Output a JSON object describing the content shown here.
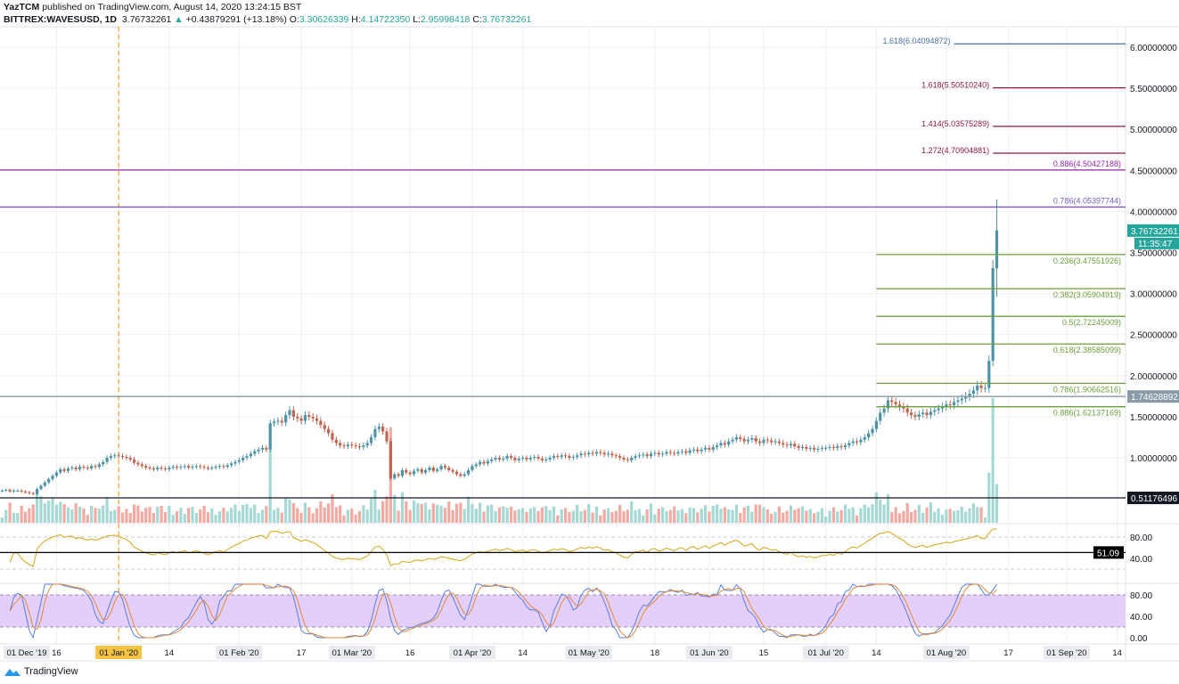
{
  "header": {
    "publisher": "YazTCM",
    "published_text": "published on TradingView.com, August 14, 2020 13:24:15 BST",
    "symbol": "BITTREX:WAVESUSD, 1D",
    "last": "3.76732261",
    "change": "+0.43879291 (+13.18%)",
    "o_label": "O:",
    "o": "3.30626339",
    "h_label": "H:",
    "h": "4.14722350",
    "l_label": "L:",
    "l": "2.95998418",
    "c_label": "C:",
    "c": "3.76732261"
  },
  "footer": {
    "brand": "TradingView"
  },
  "colors": {
    "up": "#4e94a6",
    "down": "#c0654f",
    "vol_up": "#a6d8d4",
    "vol_down": "#f2aaa2",
    "rsi": "#d4a514",
    "stoch_k": "#5b7fe0",
    "stoch_d": "#e08a3c",
    "stoch_band": "#e4cffa",
    "price_badge": "#26a69a"
  },
  "chart_data": {
    "type": "candlestick",
    "symbol": "WAVESUSD",
    "interval": "1D",
    "start_date": "2019-12-02",
    "closes": [
      0.6,
      0.61,
      0.59,
      0.6,
      0.6,
      0.59,
      0.58,
      0.57,
      0.56,
      0.62,
      0.66,
      0.7,
      0.74,
      0.78,
      0.82,
      0.86,
      0.84,
      0.87,
      0.88,
      0.86,
      0.89,
      0.88,
      0.87,
      0.9,
      0.89,
      0.92,
      0.95,
      1.0,
      1.02,
      1.03,
      1.02,
      1.01,
      1.0,
      0.98,
      0.94,
      0.92,
      0.9,
      0.88,
      0.87,
      0.86,
      0.88,
      0.87,
      0.86,
      0.88,
      0.89,
      0.88,
      0.89,
      0.9,
      0.88,
      0.89,
      0.9,
      0.89,
      0.88,
      0.87,
      0.88,
      0.89,
      0.9,
      0.89,
      0.91,
      0.93,
      0.95,
      0.97,
      1.0,
      1.02,
      1.05,
      1.08,
      1.1,
      1.12,
      1.1,
      1.42,
      1.44,
      1.45,
      1.43,
      1.52,
      1.58,
      1.5,
      1.48,
      1.45,
      1.52,
      1.5,
      1.48,
      1.45,
      1.4,
      1.35,
      1.3,
      1.22,
      1.18,
      1.15,
      1.14,
      1.16,
      1.15,
      1.14,
      1.13,
      1.15,
      1.18,
      1.25,
      1.35,
      1.38,
      1.32,
      1.2,
      0.75,
      0.8,
      0.78,
      0.85,
      0.82,
      0.8,
      0.84,
      0.86,
      0.82,
      0.85,
      0.88,
      0.84,
      0.86,
      0.9,
      0.88,
      0.85,
      0.83,
      0.8,
      0.78,
      0.8,
      0.85,
      0.9,
      0.92,
      0.95,
      0.93,
      0.96,
      0.98,
      1.0,
      0.98,
      0.99,
      1.02,
      1.0,
      0.97,
      0.99,
      1.0,
      0.98,
      1.0,
      1.01,
      0.99,
      0.97,
      0.98,
      1.0,
      1.02,
      1.01,
      1.03,
      1.02,
      1.0,
      1.01,
      1.03,
      1.05,
      1.04,
      1.06,
      1.05,
      1.07,
      1.06,
      1.04,
      1.05,
      1.03,
      1.02,
      1.0,
      0.98,
      0.97,
      1.0,
      1.02,
      1.03,
      1.04,
      1.02,
      1.05,
      1.06,
      1.04,
      1.05,
      1.07,
      1.06,
      1.05,
      1.07,
      1.08,
      1.06,
      1.09,
      1.1,
      1.08,
      1.1,
      1.12,
      1.1,
      1.13,
      1.15,
      1.18,
      1.16,
      1.2,
      1.22,
      1.25,
      1.23,
      1.2,
      1.22,
      1.24,
      1.2,
      1.18,
      1.22,
      1.21,
      1.19,
      1.2,
      1.18,
      1.16,
      1.15,
      1.17,
      1.14,
      1.12,
      1.13,
      1.11,
      1.12,
      1.1,
      1.11,
      1.12,
      1.12,
      1.13,
      1.12,
      1.14,
      1.13,
      1.15,
      1.18,
      1.2,
      1.19,
      1.22,
      1.25,
      1.3,
      1.35,
      1.45,
      1.55,
      1.6,
      1.7,
      1.68,
      1.65,
      1.62,
      1.6,
      1.55,
      1.52,
      1.5,
      1.53,
      1.55,
      1.52,
      1.56,
      1.58,
      1.6,
      1.62,
      1.65,
      1.64,
      1.68,
      1.7,
      1.72,
      1.75,
      1.78,
      1.82,
      1.88,
      1.85,
      1.85,
      2.18,
      3.31,
      3.77
    ],
    "last_candle": {
      "date": "2020-08-14",
      "open": 3.30626339,
      "high": 4.1472235,
      "low": 2.95998418,
      "close": 3.76732261
    },
    "price_axis": {
      "min": 0.5,
      "max": 6.0,
      "ticks": [
        "6.00000000",
        "5.50000000",
        "5.00000000",
        "4.50000000",
        "4.00000000",
        "3.50000000",
        "3.00000000",
        "2.50000000",
        "2.00000000",
        "1.50000000",
        "1.00000000"
      ]
    },
    "current_price": "3.76732261",
    "countdown": "11:35:47",
    "horizontal_levels": [
      {
        "price": 1.74628892,
        "label": "1.74628892",
        "color": "#8a9aa6"
      },
      {
        "price": 0.51176496,
        "label": "0.51176496",
        "color": "#131722"
      }
    ],
    "fib_levels": [
      {
        "price": 6.04094872,
        "label": "1.618(6.04094872)",
        "color": "#4a6fa5",
        "from": "2020-08-03"
      },
      {
        "price": 5.5051024,
        "label": "1.618(5.50510240)",
        "color": "#8b1a3a",
        "from": "2020-08-13"
      },
      {
        "price": 5.03575289,
        "label": "1.414(5.03575289)",
        "color": "#8b1a3a",
        "from": "2020-08-13"
      },
      {
        "price": 4.70904881,
        "label": "1.272(4.70904881)",
        "color": "#8b1a3a",
        "from": "2020-08-13"
      },
      {
        "price": 4.50427188,
        "label": "0.886(4.50427188)",
        "color": "#9c27b0",
        "from": "2019-11-30"
      },
      {
        "price": 4.05397744,
        "label": "0.786(4.05397744)",
        "color": "#7e57c2",
        "from": "2019-11-30"
      },
      {
        "price": 3.47551926,
        "label": "0.236(3.47551926)",
        "color": "#6a9f3a",
        "from": "2020-07-14"
      },
      {
        "price": 3.05904919,
        "label": "0.382(3.05904919)",
        "color": "#6a9f3a",
        "from": "2020-07-14"
      },
      {
        "price": 2.72245009,
        "label": "0.5(2.72245009)",
        "color": "#6a9f3a",
        "from": "2020-07-14"
      },
      {
        "price": 2.38585099,
        "label": "0.618(2.38585099)",
        "color": "#6a9f3a",
        "from": "2020-07-14"
      },
      {
        "price": 1.90662516,
        "label": "0.786(1.90662516)",
        "color": "#6a9f3a",
        "from": "2020-07-14"
      },
      {
        "price": 1.62137169,
        "label": "0.886(1.62137169)",
        "color": "#6a9f3a",
        "from": "2020-07-14"
      }
    ],
    "vertical_marker": {
      "date": "2020-01-01",
      "color": "#f0a020"
    },
    "rsi": {
      "axis_ticks": [
        "80.00",
        "40.00"
      ],
      "level_label": "51.09",
      "level": 51.09,
      "upper": 80,
      "lower": 20
    },
    "stoch_rsi": {
      "axis_ticks": [
        "80.00",
        "40.00",
        "0.00"
      ],
      "upper": 80,
      "lower": 20
    },
    "time_ticks": [
      {
        "date": "2019-12-01",
        "label": "01 Dec '19",
        "major": true
      },
      {
        "date": "2019-12-16",
        "label": "16"
      },
      {
        "date": "2020-01-01",
        "label": "01 Jan '20",
        "major": true,
        "highlight": true
      },
      {
        "date": "2020-01-14",
        "label": "14"
      },
      {
        "date": "2020-02-01",
        "label": "01 Feb '20",
        "major": true
      },
      {
        "date": "2020-02-17",
        "label": "17"
      },
      {
        "date": "2020-03-01",
        "label": "01 Mar '20",
        "major": true
      },
      {
        "date": "2020-03-16",
        "label": "16"
      },
      {
        "date": "2020-04-01",
        "label": "01 Apr '20",
        "major": true
      },
      {
        "date": "2020-04-14",
        "label": "14"
      },
      {
        "date": "2020-05-01",
        "label": "01 May '20",
        "major": true
      },
      {
        "date": "2020-05-18",
        "label": "18"
      },
      {
        "date": "2020-06-01",
        "label": "01 Jun '20",
        "major": true
      },
      {
        "date": "2020-06-15",
        "label": "15"
      },
      {
        "date": "2020-07-01",
        "label": "01 Jul '20",
        "major": true
      },
      {
        "date": "2020-07-14",
        "label": "14"
      },
      {
        "date": "2020-08-01",
        "label": "01 Aug '20",
        "major": true
      },
      {
        "date": "2020-08-17",
        "label": "17"
      },
      {
        "date": "2020-09-01",
        "label": "01 Sep '20",
        "major": true
      },
      {
        "date": "2020-09-14",
        "label": "14"
      }
    ]
  }
}
